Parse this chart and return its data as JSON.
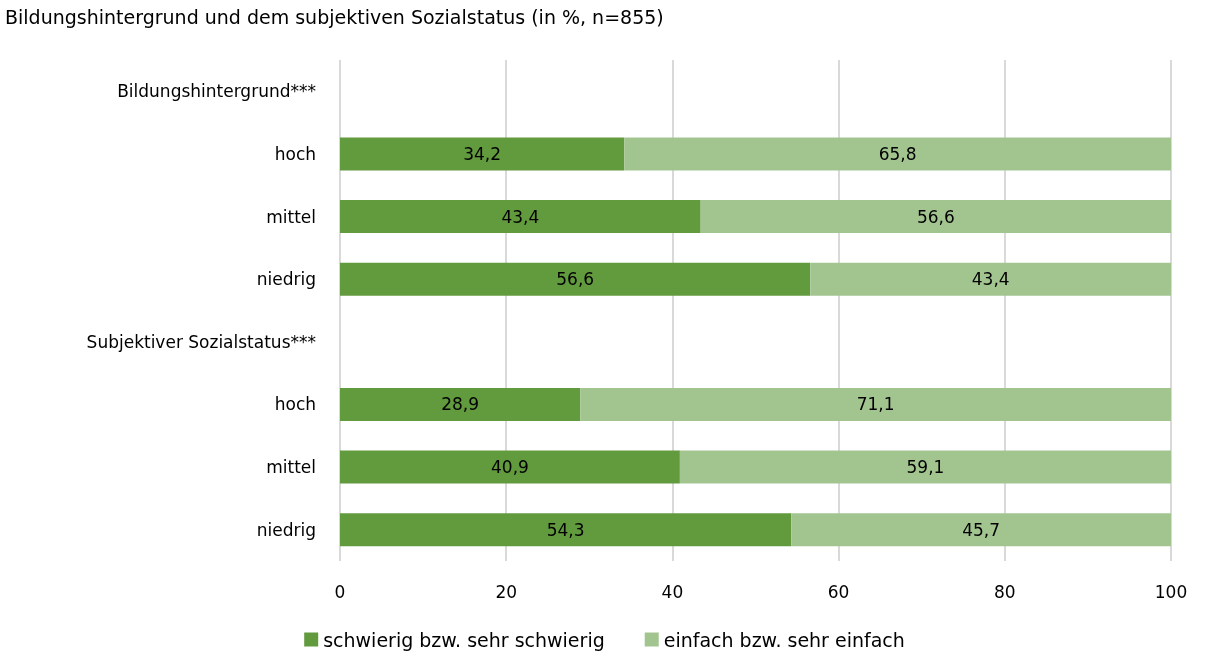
{
  "chart_data": {
    "type": "bar",
    "orientation": "horizontal",
    "stacked": true,
    "title": "Bildungshintergrund und dem subjektiven Sozialstatus (in %, n=855)",
    "categories": [
      "Bildungshintergrund***",
      "hoch",
      "mittel",
      "niedrig",
      "Subjektiver Sozialstatus***",
      "hoch",
      "mittel",
      "niedrig"
    ],
    "series": [
      {
        "name": "schwierig bzw. sehr schwierig",
        "color": "#629a3e",
        "values": [
          null,
          34.2,
          43.4,
          56.6,
          null,
          28.9,
          40.9,
          54.3
        ],
        "value_labels": [
          null,
          "34,2",
          "43,4",
          "56,6",
          null,
          "28,9",
          "40,9",
          "54,3"
        ]
      },
      {
        "name": "einfach bzw. sehr einfach",
        "color": "#a2c590",
        "values": [
          null,
          65.8,
          56.6,
          43.4,
          null,
          71.1,
          59.1,
          45.7
        ],
        "value_labels": [
          null,
          "65,8",
          "56,6",
          "43,4",
          null,
          "71,1",
          "59,1",
          "45,7"
        ]
      }
    ],
    "xlim": [
      0,
      100
    ],
    "xticks": [
      0,
      20,
      40,
      60,
      80,
      100
    ],
    "grid": "x",
    "legend": "bottom"
  }
}
